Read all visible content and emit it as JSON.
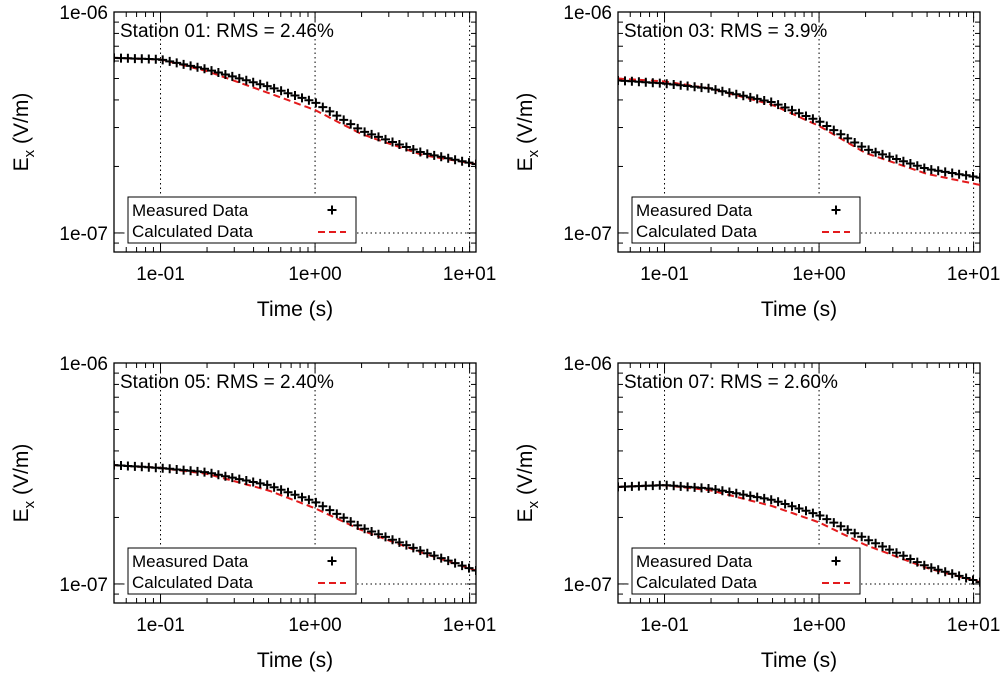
{
  "chart_data": [
    {
      "type": "scatter",
      "title": "Station 01: RMS = 2.46%",
      "xlabel": "Time (s)",
      "ylabel_main": "E",
      "ylabel_sub": "x",
      "ylabel_unit": " (V/m)",
      "x_scale": "log",
      "y_scale": "log",
      "xlim": [
        0.05,
        11
      ],
      "ylim": [
        8.2e-08,
        1e-06
      ],
      "x_ticks": [
        0.1,
        1,
        10
      ],
      "x_tick_labels": [
        "1e-01",
        "1e+00",
        "1e+01"
      ],
      "y_ticks": [
        1e-07,
        1e-06
      ],
      "y_tick_labels": [
        "1e-07",
        "1e-06"
      ],
      "grid": "dotted at major ticks",
      "legend_position": "bottom-left",
      "series": [
        {
          "name": "Measured Data",
          "marker": "+",
          "color": "#000000",
          "x": [
            0.05,
            0.1,
            0.2,
            0.5,
            1,
            2,
            5,
            11
          ],
          "y": [
            6.2e-07,
            6.1e-07,
            5.5e-07,
            4.6e-07,
            3.9e-07,
            2.9e-07,
            2.3e-07,
            2.05e-07
          ]
        },
        {
          "name": "Calculated Data",
          "style": "dashed",
          "color": "#e31a1c",
          "x": [
            0.05,
            0.1,
            0.2,
            0.5,
            1,
            2,
            5,
            11
          ],
          "y": [
            6.2e-07,
            6.1e-07,
            5.4e-07,
            4.3e-07,
            3.6e-07,
            2.8e-07,
            2.25e-07,
            2.05e-07
          ]
        }
      ]
    },
    {
      "type": "scatter",
      "title": "Station 03: RMS = 3.9%",
      "xlabel": "Time (s)",
      "ylabel_main": "E",
      "ylabel_sub": "x",
      "ylabel_unit": " (V/m)",
      "x_scale": "log",
      "y_scale": "log",
      "xlim": [
        0.05,
        11
      ],
      "ylim": [
        8.2e-08,
        1e-06
      ],
      "x_ticks": [
        0.1,
        1,
        10
      ],
      "x_tick_labels": [
        "1e-01",
        "1e+00",
        "1e+01"
      ],
      "y_ticks": [
        1e-07,
        1e-06
      ],
      "y_tick_labels": [
        "1e-07",
        "1e-06"
      ],
      "grid": "dotted at major ticks",
      "legend_position": "bottom-left",
      "series": [
        {
          "name": "Measured Data",
          "marker": "+",
          "color": "#000000",
          "x": [
            0.05,
            0.1,
            0.2,
            0.5,
            1,
            2,
            5,
            11
          ],
          "y": [
            4.9e-07,
            4.75e-07,
            4.5e-07,
            3.9e-07,
            3.2e-07,
            2.4e-07,
            1.95e-07,
            1.78e-07
          ]
        },
        {
          "name": "Calculated Data",
          "style": "dashed",
          "color": "#e31a1c",
          "x": [
            0.05,
            0.1,
            0.2,
            0.5,
            1,
            2,
            5,
            11
          ],
          "y": [
            5e-07,
            4.85e-07,
            4.5e-07,
            3.8e-07,
            3.05e-07,
            2.3e-07,
            1.85e-07,
            1.65e-07
          ]
        }
      ]
    },
    {
      "type": "scatter",
      "title": "Station 05: RMS = 2.40%",
      "xlabel": "Time (s)",
      "ylabel_main": "E",
      "ylabel_sub": "x",
      "ylabel_unit": " (V/m)",
      "x_scale": "log",
      "y_scale": "log",
      "xlim": [
        0.05,
        11
      ],
      "ylim": [
        8.2e-08,
        1e-06
      ],
      "x_ticks": [
        0.1,
        1,
        10
      ],
      "x_tick_labels": [
        "1e-01",
        "1e+00",
        "1e+01"
      ],
      "y_ticks": [
        1e-07,
        1e-06
      ],
      "y_tick_labels": [
        "1e-07",
        "1e-06"
      ],
      "grid": "dotted at major ticks",
      "legend_position": "bottom-left",
      "series": [
        {
          "name": "Measured Data",
          "marker": "+",
          "color": "#000000",
          "x": [
            0.05,
            0.1,
            0.2,
            0.5,
            1,
            2,
            5,
            11
          ],
          "y": [
            3.45e-07,
            3.35e-07,
            3.2e-07,
            2.8e-07,
            2.35e-07,
            1.8e-07,
            1.4e-07,
            1.15e-07
          ]
        },
        {
          "name": "Calculated Data",
          "style": "dashed",
          "color": "#e31a1c",
          "x": [
            0.05,
            0.1,
            0.2,
            0.5,
            1,
            2,
            5,
            11
          ],
          "y": [
            3.45e-07,
            3.35e-07,
            3.15e-07,
            2.65e-07,
            2.2e-07,
            1.75e-07,
            1.38e-07,
            1.15e-07
          ]
        }
      ]
    },
    {
      "type": "scatter",
      "title": "Station 07: RMS = 2.60%",
      "xlabel": "Time (s)",
      "ylabel_main": "E",
      "ylabel_sub": "x",
      "ylabel_unit": " (V/m)",
      "x_scale": "log",
      "y_scale": "log",
      "xlim": [
        0.05,
        11
      ],
      "ylim": [
        8.2e-08,
        1e-06
      ],
      "x_ticks": [
        0.1,
        1,
        10
      ],
      "x_tick_labels": [
        "1e-01",
        "1e+00",
        "1e+01"
      ],
      "y_ticks": [
        1e-07,
        1e-06
      ],
      "y_tick_labels": [
        "1e-07",
        "1e-06"
      ],
      "grid": "dotted at major ticks",
      "legend_position": "bottom-left",
      "series": [
        {
          "name": "Measured Data",
          "marker": "+",
          "color": "#000000",
          "x": [
            0.05,
            0.1,
            0.2,
            0.5,
            1,
            2,
            5,
            11
          ],
          "y": [
            2.75e-07,
            2.8e-07,
            2.7e-07,
            2.4e-07,
            2.05e-07,
            1.6e-07,
            1.2e-07,
            1.02e-07
          ]
        },
        {
          "name": "Calculated Data",
          "style": "dashed",
          "color": "#e31a1c",
          "x": [
            0.05,
            0.1,
            0.2,
            0.5,
            1,
            2,
            5,
            11
          ],
          "y": [
            2.75e-07,
            2.8e-07,
            2.65e-07,
            2.25e-07,
            1.9e-07,
            1.5e-07,
            1.18e-07,
            1.02e-07
          ]
        }
      ]
    }
  ]
}
